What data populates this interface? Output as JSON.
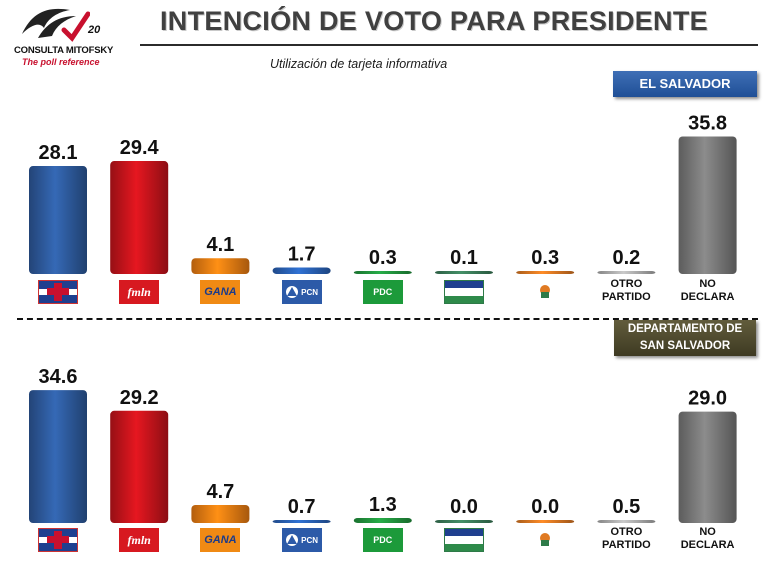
{
  "header": {
    "brand_name": "CONSULTA MITOFSKY",
    "brand_tagline": "The poll reference",
    "brand_anniversary": "20",
    "title": "INTENCIÓN DE VOTO PARA PRESIDENTE",
    "subtitle": "Utilización de tarjeta informativa"
  },
  "colors": {
    "arena": "#2e5b9e",
    "fmln": "#c8141c",
    "gana": "#ee7d12",
    "pcn": "#2a63b8",
    "pdc": "#22973f",
    "cd": "#3b7d5a",
    "ps": "#e07a22",
    "otro": "#b0b0b0",
    "no_declara": "#7a7a7a"
  },
  "chart_data": [
    {
      "type": "bar",
      "region": "EL SALVADOR",
      "categories": [
        "ARENA",
        "FMLN",
        "GANA",
        "PCN",
        "PDC",
        "CD",
        "PS",
        "OTRO PARTIDO",
        "NO DECLARA"
      ],
      "category_labels": [
        "",
        "fmln",
        "GANA",
        "PCN",
        "PDC",
        "",
        "",
        "OTRO PARTIDO",
        "NO DECLARA"
      ],
      "values": [
        28.1,
        29.4,
        4.1,
        1.7,
        0.3,
        0.1,
        0.3,
        0.2,
        35.8
      ],
      "value_labels": [
        "28.1",
        "29.4",
        "4.1",
        "1.7",
        "0.3",
        "0.1",
        "0.3",
        "0.2",
        "35.8"
      ],
      "ylim": [
        0,
        38
      ]
    },
    {
      "type": "bar",
      "region": "DEPARTAMENTO DE SAN SALVADOR",
      "categories": [
        "ARENA",
        "FMLN",
        "GANA",
        "PCN",
        "PDC",
        "CD",
        "PS",
        "OTRO PARTIDO",
        "NO DECLARA"
      ],
      "category_labels": [
        "",
        "fmln",
        "GANA",
        "PCN",
        "PDC",
        "",
        "",
        "OTRO PARTIDO",
        "NO DECLARA"
      ],
      "values": [
        34.6,
        29.2,
        4.7,
        0.7,
        1.3,
        0.0,
        0.0,
        0.5,
        29.0
      ],
      "value_labels": [
        "34.6",
        "29.2",
        "4.7",
        "0.7",
        "1.3",
        "0.0",
        "0.0",
        "0.5",
        "29.0"
      ],
      "ylim": [
        0,
        38
      ]
    }
  ],
  "regions": {
    "country_label": "EL SALVADOR",
    "department_line1": "DEPARTAMENTO DE",
    "department_line2": "SAN SALVADOR"
  }
}
